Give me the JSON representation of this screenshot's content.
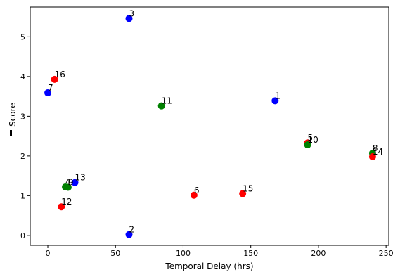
{
  "chart_data": {
    "type": "scatter",
    "xlabel": "Temporal Delay (hrs)",
    "ylabel": "Score",
    "xlim": [
      -13,
      252
    ],
    "ylim": [
      -0.25,
      5.75
    ],
    "xticks": [
      0,
      50,
      100,
      150,
      200,
      250
    ],
    "yticks": [
      0,
      1,
      2,
      3,
      4,
      5
    ],
    "grid": false,
    "colors": {
      "blue": "#0000ff",
      "green": "#008000",
      "red": "#ff0000"
    },
    "points": [
      {
        "label": "1",
        "x": 168,
        "y": 3.39,
        "color": "blue"
      },
      {
        "label": "2",
        "x": 60,
        "y": 0.02,
        "color": "blue"
      },
      {
        "label": "3",
        "x": 60,
        "y": 5.46,
        "color": "blue"
      },
      {
        "label": "4",
        "x": 13,
        "y": 1.22,
        "color": "green"
      },
      {
        "label": "5",
        "x": 192,
        "y": 2.33,
        "color": "red"
      },
      {
        "label": "6",
        "x": 108,
        "y": 1.01,
        "color": "red"
      },
      {
        "label": "7",
        "x": 0,
        "y": 3.59,
        "color": "blue"
      },
      {
        "label": "8",
        "x": 240,
        "y": 2.07,
        "color": "green"
      },
      {
        "label": "9",
        "x": 15,
        "y": 1.21,
        "color": "green"
      },
      {
        "label": "10",
        "x": 192,
        "y": 2.28,
        "color": "green"
      },
      {
        "label": "11",
        "x": 84,
        "y": 3.26,
        "color": "green"
      },
      {
        "label": "12",
        "x": 10,
        "y": 0.72,
        "color": "red"
      },
      {
        "label": "13",
        "x": 20,
        "y": 1.33,
        "color": "blue"
      },
      {
        "label": "14",
        "x": 240,
        "y": 1.98,
        "color": "red"
      },
      {
        "label": "15",
        "x": 144,
        "y": 1.05,
        "color": "red"
      },
      {
        "label": "16",
        "x": 5,
        "y": 3.93,
        "color": "red"
      }
    ]
  }
}
